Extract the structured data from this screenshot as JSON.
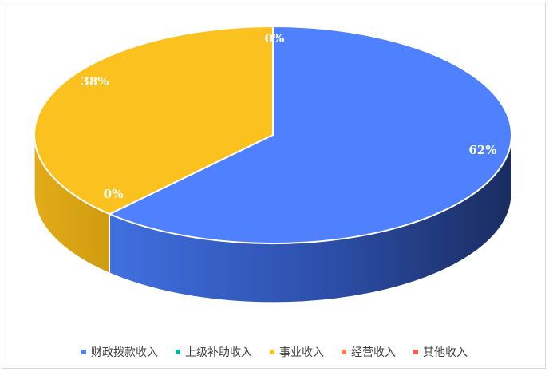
{
  "chart_data": {
    "type": "pie",
    "style": "3d",
    "slices": [
      {
        "name": "财政拨款收入",
        "value": 62,
        "label": "62%",
        "color": "#4f81ff",
        "side_color": "#2c4ea8"
      },
      {
        "name": "上级补助收入",
        "value": 0,
        "label": "0%",
        "color": "#00b0a0",
        "side_color": "#007f73"
      },
      {
        "name": "事业收入",
        "value": 38,
        "label": "38%",
        "color": "#fbc11e",
        "side_color": "#d19e12"
      },
      {
        "name": "经营收入",
        "value": 0,
        "label": "0%",
        "color": "#ff7f50",
        "side_color": "#c85d36"
      },
      {
        "name": "其他收入",
        "value": 0,
        "label": "0%",
        "color": "#ff5a5a",
        "side_color": "#c43f3f"
      }
    ],
    "legend_position": "bottom",
    "colors": {
      "slice_border": "#ffffff",
      "frame_border": "#d9d9d9",
      "legend_text": "#404040"
    }
  }
}
